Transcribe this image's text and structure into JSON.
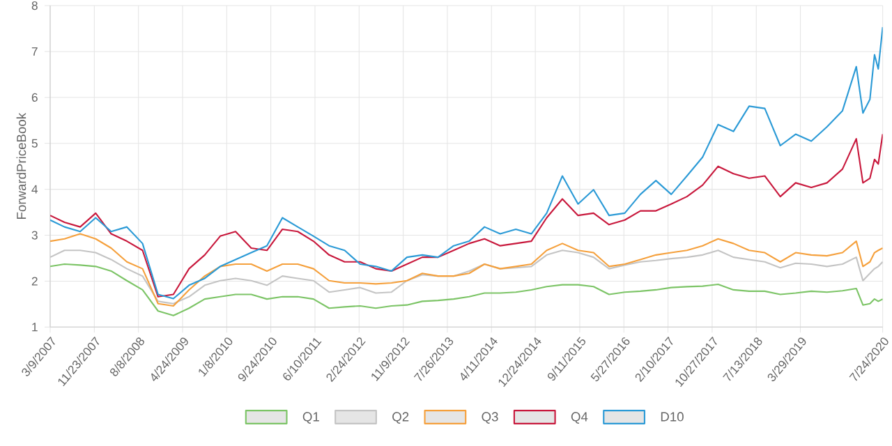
{
  "chart_data": {
    "type": "line",
    "ylabel": "ForwardPriceBook",
    "grid": true,
    "legend": "bottom",
    "x": [
      "2007-03-09",
      "2007-06-01",
      "2007-09-01",
      "2007-12-01",
      "2008-03-01",
      "2008-06-01",
      "2008-09-01",
      "2008-12-01",
      "2009-03-01",
      "2009-06-01",
      "2009-09-01",
      "2009-12-01",
      "2010-03-01",
      "2010-06-01",
      "2010-09-01",
      "2010-12-01",
      "2011-03-01",
      "2011-06-01",
      "2011-09-01",
      "2011-12-01",
      "2012-03-01",
      "2012-06-01",
      "2012-09-01",
      "2012-12-01",
      "2013-03-01",
      "2013-06-01",
      "2013-09-01",
      "2013-12-01",
      "2014-03-01",
      "2014-06-01",
      "2014-09-01",
      "2014-12-01",
      "2015-03-01",
      "2015-06-01",
      "2015-09-01",
      "2015-12-01",
      "2016-03-01",
      "2016-06-01",
      "2016-09-01",
      "2016-12-01",
      "2017-03-01",
      "2017-06-01",
      "2017-09-01",
      "2017-12-01",
      "2018-03-01",
      "2018-06-01",
      "2018-09-01",
      "2018-12-01",
      "2019-03-01",
      "2019-06-01",
      "2019-09-01",
      "2019-12-01",
      "2020-02-20",
      "2020-03-30",
      "2020-05-10",
      "2020-06-06",
      "2020-06-28",
      "2020-07-24"
    ],
    "xlim": [
      "2007-03-09",
      "2020-07-24"
    ],
    "xticks": [
      {
        "value": "2007-03-09",
        "label": "3/9/2007"
      },
      {
        "value": "2007-11-23",
        "label": "11/23/2007"
      },
      {
        "value": "2008-08-08",
        "label": "8/8/2008"
      },
      {
        "value": "2009-04-24",
        "label": "4/24/2009"
      },
      {
        "value": "2010-01-08",
        "label": "1/8/2010"
      },
      {
        "value": "2010-09-24",
        "label": "9/24/2010"
      },
      {
        "value": "2011-06-10",
        "label": "6/10/2011"
      },
      {
        "value": "2012-02-24",
        "label": "2/24/2012"
      },
      {
        "value": "2012-11-09",
        "label": "11/9/2012"
      },
      {
        "value": "2013-07-26",
        "label": "7/26/2013"
      },
      {
        "value": "2014-04-11",
        "label": "4/11/2014"
      },
      {
        "value": "2014-12-24",
        "label": "12/24/2014"
      },
      {
        "value": "2015-09-11",
        "label": "9/11/2015"
      },
      {
        "value": "2016-05-27",
        "label": "5/27/2016"
      },
      {
        "value": "2017-02-10",
        "label": "2/10/2017"
      },
      {
        "value": "2017-10-27",
        "label": "10/27/2017"
      },
      {
        "value": "2018-07-13",
        "label": "7/13/2018"
      },
      {
        "value": "2019-03-29",
        "label": "3/29/2019"
      },
      {
        "value": "2020-07-24",
        "label": "7/24/2020"
      }
    ],
    "ylim": [
      1,
      8
    ],
    "yticks": [
      1,
      2,
      3,
      4,
      5,
      6,
      7,
      8
    ],
    "series": [
      {
        "name": "Q1",
        "color": "#7cc466",
        "values": [
          2.32,
          2.37,
          2.35,
          2.32,
          2.22,
          2.01,
          1.81,
          1.35,
          1.25,
          1.41,
          1.61,
          1.66,
          1.71,
          1.71,
          1.61,
          1.66,
          1.66,
          1.61,
          1.41,
          1.44,
          1.46,
          1.41,
          1.46,
          1.48,
          1.56,
          1.58,
          1.61,
          1.66,
          1.74,
          1.74,
          1.76,
          1.81,
          1.88,
          1.92,
          1.92,
          1.88,
          1.71,
          1.76,
          1.78,
          1.81,
          1.86,
          1.88,
          1.89,
          1.93,
          1.81,
          1.78,
          1.78,
          1.71,
          1.74,
          1.78,
          1.76,
          1.79,
          1.84,
          1.48,
          1.51,
          1.61,
          1.56,
          1.61
        ]
      },
      {
        "name": "Q2",
        "color": "#c4c4c4",
        "values": [
          2.52,
          2.67,
          2.67,
          2.62,
          2.47,
          2.27,
          2.11,
          1.56,
          1.51,
          1.66,
          1.91,
          2.01,
          2.06,
          2.01,
          1.91,
          2.11,
          2.06,
          2.01,
          1.76,
          1.81,
          1.86,
          1.74,
          1.76,
          2.01,
          2.14,
          2.11,
          2.11,
          2.22,
          2.37,
          2.27,
          2.29,
          2.32,
          2.57,
          2.67,
          2.62,
          2.52,
          2.27,
          2.35,
          2.42,
          2.45,
          2.49,
          2.52,
          2.57,
          2.67,
          2.52,
          2.47,
          2.42,
          2.29,
          2.39,
          2.37,
          2.32,
          2.37,
          2.52,
          2.01,
          2.17,
          2.27,
          2.32,
          2.42
        ]
      },
      {
        "name": "Q3",
        "color": "#f5a03c",
        "values": [
          2.87,
          2.92,
          3.03,
          2.92,
          2.72,
          2.42,
          2.27,
          1.51,
          1.46,
          1.81,
          2.11,
          2.32,
          2.37,
          2.37,
          2.22,
          2.37,
          2.37,
          2.27,
          2.01,
          1.96,
          1.96,
          1.94,
          1.96,
          2.01,
          2.17,
          2.11,
          2.11,
          2.17,
          2.37,
          2.27,
          2.32,
          2.37,
          2.67,
          2.82,
          2.67,
          2.62,
          2.32,
          2.37,
          2.47,
          2.57,
          2.62,
          2.67,
          2.77,
          2.92,
          2.82,
          2.67,
          2.62,
          2.42,
          2.62,
          2.57,
          2.55,
          2.62,
          2.87,
          2.32,
          2.42,
          2.62,
          2.67,
          2.72
        ]
      },
      {
        "name": "Q4",
        "color": "#c8183c",
        "values": [
          3.43,
          3.28,
          3.18,
          3.48,
          3.03,
          2.87,
          2.67,
          1.66,
          1.71,
          2.27,
          2.57,
          2.98,
          3.08,
          2.72,
          2.67,
          3.13,
          3.08,
          2.87,
          2.57,
          2.42,
          2.42,
          2.27,
          2.22,
          2.37,
          2.52,
          2.52,
          2.67,
          2.82,
          2.92,
          2.77,
          2.82,
          2.87,
          3.38,
          3.79,
          3.43,
          3.48,
          3.23,
          3.33,
          3.53,
          3.53,
          3.68,
          3.84,
          4.09,
          4.5,
          4.34,
          4.24,
          4.29,
          3.84,
          4.14,
          4.04,
          4.14,
          4.44,
          5.1,
          4.14,
          4.24,
          4.65,
          4.55,
          5.2
        ]
      },
      {
        "name": "D10",
        "color": "#2b9ad6",
        "values": [
          3.33,
          3.18,
          3.08,
          3.38,
          3.08,
          3.18,
          2.82,
          1.71,
          1.62,
          1.91,
          2.06,
          2.32,
          2.47,
          2.62,
          2.77,
          3.38,
          3.18,
          2.98,
          2.77,
          2.67,
          2.37,
          2.32,
          2.22,
          2.52,
          2.57,
          2.52,
          2.77,
          2.87,
          3.18,
          3.03,
          3.13,
          3.03,
          3.48,
          4.29,
          3.68,
          3.99,
          3.43,
          3.48,
          3.89,
          4.19,
          3.89,
          4.29,
          4.7,
          5.41,
          5.26,
          5.81,
          5.76,
          4.95,
          5.2,
          5.05,
          5.36,
          5.71,
          6.67,
          5.66,
          5.96,
          6.93,
          6.62,
          7.53
        ]
      }
    ]
  }
}
